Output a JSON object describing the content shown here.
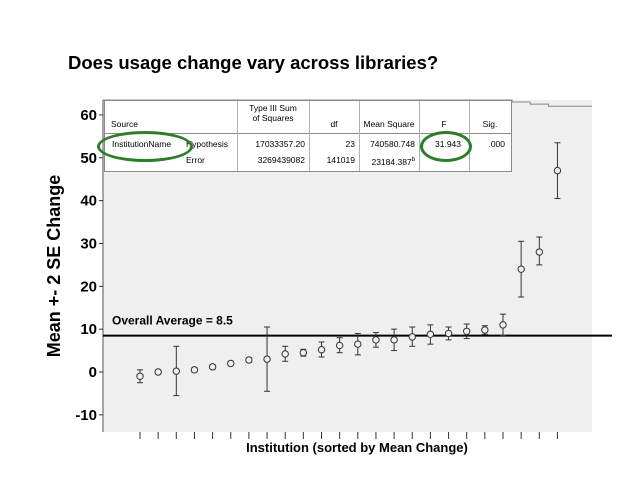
{
  "slide_title": "Does usage change vary across libraries?",
  "anova_table": {
    "headers": {
      "source": "Source",
      "ss": "Type III Sum\nof Squares",
      "df": "df",
      "ms": "Mean Square",
      "f": "F",
      "sig": "Sig."
    },
    "rows": [
      {
        "source": "InstitutionName",
        "term": "Hypothesis",
        "ss": "17033357.20",
        "df": "23",
        "ms": "740580.748",
        "f": "31.943",
        "sig": ".000"
      },
      {
        "source": "",
        "term": "Error",
        "ss": "3269439082",
        "df": "141019",
        "ms": "23184.387",
        "ms_sup": "b",
        "f": "",
        "sig": ""
      }
    ]
  },
  "highlight_color": "#2e7d27",
  "chart_data": {
    "type": "scatter",
    "subtype": "error-bar",
    "xlabel": "Institution (sorted by Mean Change)",
    "ylabel": "Mean +- 2 SE Change",
    "ylim": [
      -12,
      66
    ],
    "yticks": [
      -10,
      0,
      10,
      20,
      30,
      40,
      50,
      60
    ],
    "ytick_labels": [
      "-10",
      "0",
      "10",
      "20",
      "30",
      "40",
      "50",
      "60"
    ],
    "grid": false,
    "reference_line": {
      "value": 8.5,
      "label": "Overall Average = 8.5"
    },
    "points": [
      {
        "mean": -1.0,
        "low": -2.5,
        "high": 0.5
      },
      {
        "mean": 0.0,
        "low": -0.5,
        "high": 0.5
      },
      {
        "mean": 0.2,
        "low": -5.5,
        "high": 6.0
      },
      {
        "mean": 0.5,
        "low": 0.0,
        "high": 1.0
      },
      {
        "mean": 1.2,
        "low": 0.7,
        "high": 1.7
      },
      {
        "mean": 2.0,
        "low": 1.5,
        "high": 2.5
      },
      {
        "mean": 2.8,
        "low": 2.3,
        "high": 3.3
      },
      {
        "mean": 3.0,
        "low": -4.5,
        "high": 10.5
      },
      {
        "mean": 4.2,
        "low": 2.5,
        "high": 6.0
      },
      {
        "mean": 4.5,
        "low": 3.7,
        "high": 5.3
      },
      {
        "mean": 5.2,
        "low": 3.5,
        "high": 7.0
      },
      {
        "mean": 6.2,
        "low": 4.5,
        "high": 8.0
      },
      {
        "mean": 6.5,
        "low": 4.0,
        "high": 9.0
      },
      {
        "mean": 7.5,
        "low": 5.8,
        "high": 9.2
      },
      {
        "mean": 7.5,
        "low": 5.0,
        "high": 10.0
      },
      {
        "mean": 8.2,
        "low": 6.0,
        "high": 10.5
      },
      {
        "mean": 8.8,
        "low": 6.5,
        "high": 11.0
      },
      {
        "mean": 9.0,
        "low": 7.5,
        "high": 10.5
      },
      {
        "mean": 9.5,
        "low": 7.8,
        "high": 11.2
      },
      {
        "mean": 9.8,
        "low": 8.8,
        "high": 10.8
      },
      {
        "mean": 11.0,
        "low": 8.5,
        "high": 13.5
      },
      {
        "mean": 24.0,
        "low": 17.5,
        "high": 30.5
      },
      {
        "mean": 28.0,
        "low": 25.0,
        "high": 31.5
      },
      {
        "mean": 47.0,
        "low": 40.5,
        "high": 53.5
      }
    ]
  }
}
